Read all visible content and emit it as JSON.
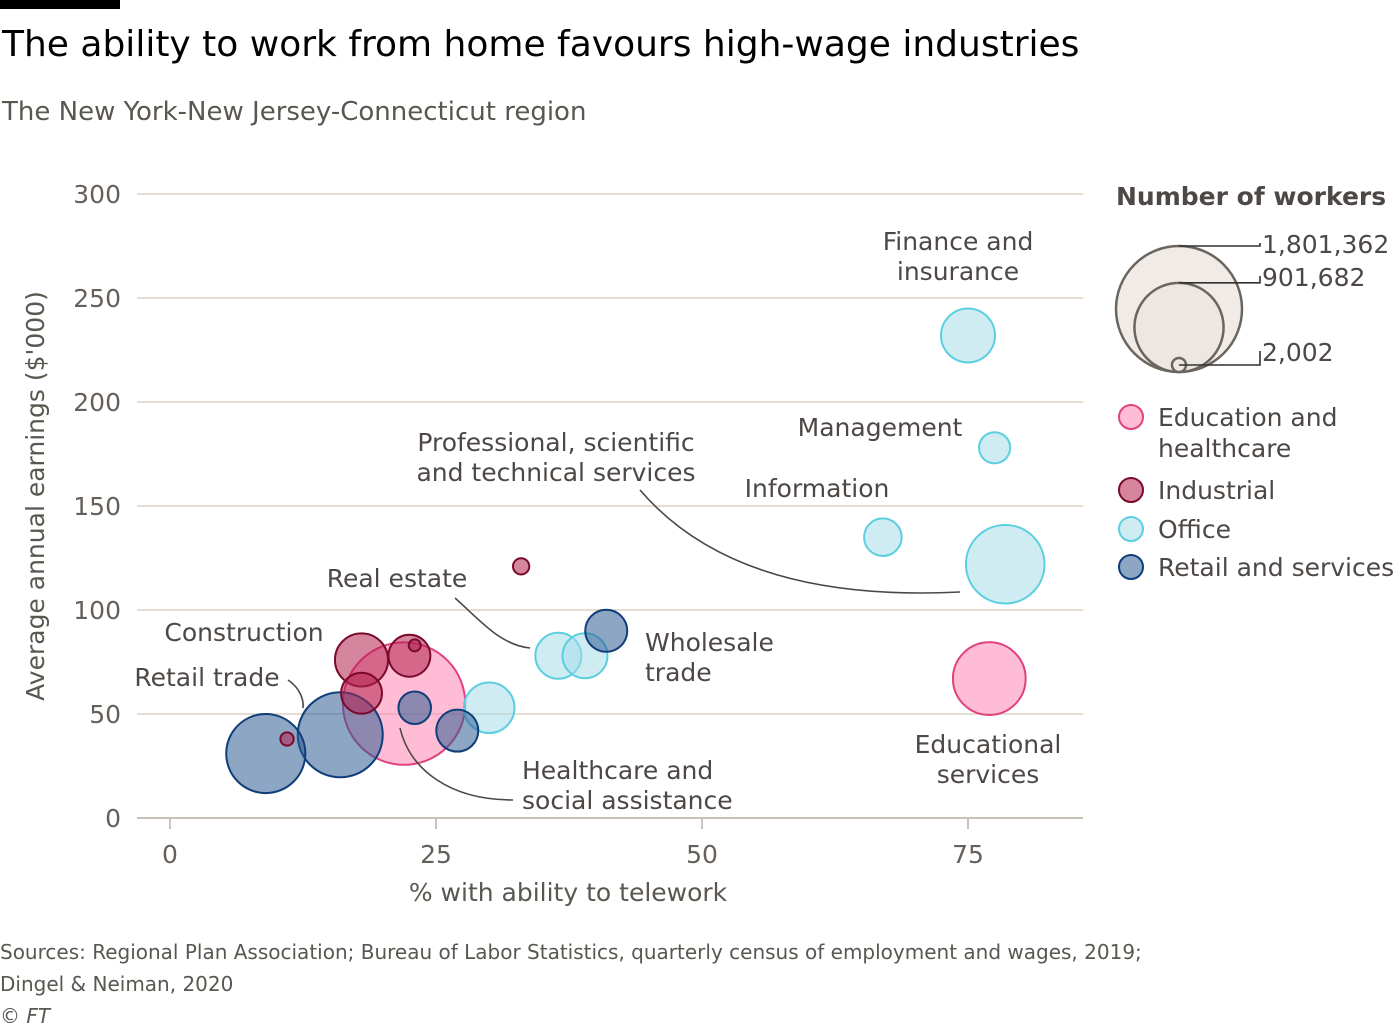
{
  "header": {
    "title": "The ability to work from home favours high-wage industries",
    "subtitle": "The New York-New Jersey-Connecticut region"
  },
  "footer": {
    "source_line1": "Sources: Regional Plan Association; Bureau of Labor Statistics, quarterly census of employment and wages, 2019;",
    "source_line2": "Dingel & Neiman, 2020",
    "copyright": "© FT"
  },
  "chart_data": {
    "type": "scatter",
    "xlabel": "% with ability to telework",
    "ylabel": "Average annual earnings ($'000)",
    "xlim": [
      0,
      85
    ],
    "ylim": [
      0,
      300
    ],
    "xticks": [
      0,
      25,
      50,
      75
    ],
    "yticks": [
      0,
      50,
      100,
      150,
      200,
      250,
      300
    ],
    "grid": "horizontal",
    "size_legend": {
      "title": "Number of workers",
      "values": [
        1801362,
        901682,
        2002
      ],
      "labels": [
        "1,801,362",
        "901,682",
        "2,002"
      ],
      "color": "#ece6e1"
    },
    "legend_placement": "right",
    "categories": [
      {
        "name": "Education and healthcare",
        "fill": "#ff86b3",
        "stroke": "#e0427f"
      },
      {
        "name": "Industrial",
        "fill": "#b3204f",
        "stroke": "#7a0a2c"
      },
      {
        "name": "Office",
        "fill": "#a8dde9",
        "stroke": "#5bcfe0"
      },
      {
        "name": "Retail and services",
        "fill": "#2e5c91",
        "stroke": "#0f3e7a"
      }
    ],
    "points": [
      {
        "x": 75,
        "y": 232,
        "workers": 330000,
        "category": 2,
        "label": "Finance and insurance"
      },
      {
        "x": 77.5,
        "y": 178,
        "workers": 110000,
        "category": 2,
        "label": "Management"
      },
      {
        "x": 67,
        "y": 135,
        "workers": 160000,
        "category": 2,
        "label": "Information"
      },
      {
        "x": 78.5,
        "y": 122,
        "workers": 700000,
        "category": 2,
        "label": "Professional, scientific and technical services"
      },
      {
        "x": 77,
        "y": 67,
        "workers": 600000,
        "category": 0,
        "label": "Educational services"
      },
      {
        "x": 33,
        "y": 121,
        "workers": 30000,
        "category": 1,
        "label": ""
      },
      {
        "x": 36.5,
        "y": 78,
        "workers": 240000,
        "category": 2,
        "label": "Real estate"
      },
      {
        "x": 39,
        "y": 78,
        "workers": 230000,
        "category": 2,
        "label": ""
      },
      {
        "x": 41,
        "y": 90,
        "workers": 200000,
        "category": 3,
        "label": "Wholesale trade"
      },
      {
        "x": 22,
        "y": 55,
        "workers": 1700000,
        "category": 0,
        "label": "Healthcare and social assistance"
      },
      {
        "x": 30,
        "y": 53,
        "workers": 290000,
        "category": 2,
        "label": ""
      },
      {
        "x": 18,
        "y": 76,
        "workers": 320000,
        "category": 1,
        "label": "Construction"
      },
      {
        "x": 22.5,
        "y": 78,
        "workers": 200000,
        "category": 1,
        "label": ""
      },
      {
        "x": 23,
        "y": 83,
        "workers": 8000,
        "category": 1,
        "label": ""
      },
      {
        "x": 18,
        "y": 60,
        "workers": 190000,
        "category": 1,
        "label": ""
      },
      {
        "x": 23,
        "y": 53,
        "workers": 120000,
        "category": 3,
        "label": ""
      },
      {
        "x": 27,
        "y": 42,
        "workers": 200000,
        "category": 3,
        "label": ""
      },
      {
        "x": 16,
        "y": 40,
        "workers": 820000,
        "category": 3,
        "label": ""
      },
      {
        "x": 9,
        "y": 31,
        "workers": 710000,
        "category": 3,
        "label": "Retail trade"
      },
      {
        "x": 11,
        "y": 38,
        "workers": 20000,
        "category": 1,
        "label": ""
      }
    ]
  }
}
